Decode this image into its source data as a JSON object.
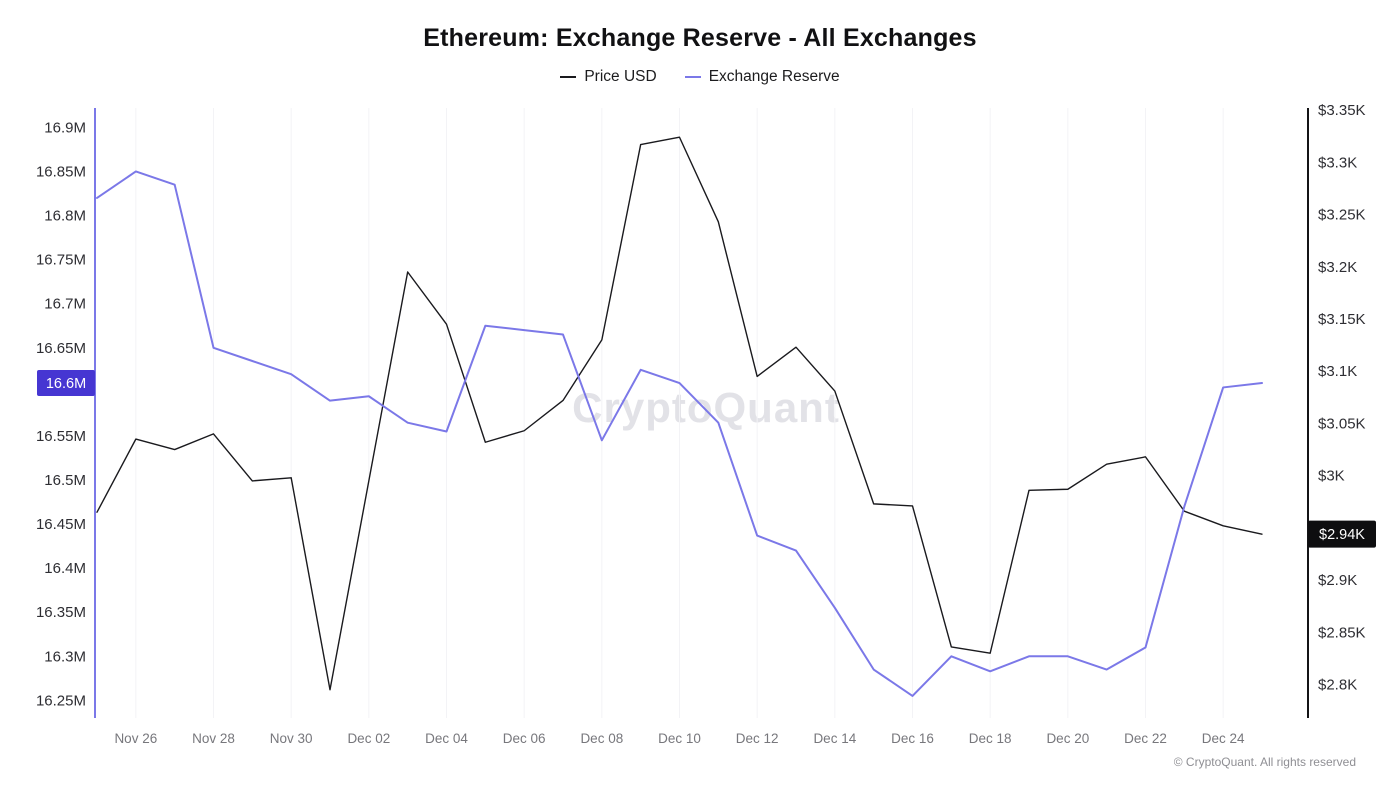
{
  "header": {
    "title": "Ethereum: Exchange Reserve - All Exchanges"
  },
  "legend": {
    "items": [
      {
        "label": "Price USD",
        "color": "#1a1a1e"
      },
      {
        "label": "Exchange Reserve",
        "color": "#7b78e8"
      }
    ]
  },
  "watermark": "CryptoQuant",
  "footer": {
    "copyright": "© CryptoQuant. All rights reserved"
  },
  "badges": {
    "left": {
      "label": "16.6M",
      "color": "#4636d2",
      "value": 16.61
    },
    "right": {
      "label": "$2.94K",
      "color": "#0e0e10",
      "value": 2944
    }
  },
  "chart_data": {
    "type": "line",
    "title": "Ethereum: Exchange Reserve - All Exchanges",
    "x": [
      "Nov 25",
      "Nov 26",
      "Nov 27",
      "Nov 28",
      "Nov 29",
      "Nov 30",
      "Dec 01",
      "Dec 02",
      "Dec 03",
      "Dec 04",
      "Dec 05",
      "Dec 06",
      "Dec 07",
      "Dec 08",
      "Dec 09",
      "Dec 10",
      "Dec 11",
      "Dec 12",
      "Dec 13",
      "Dec 14",
      "Dec 15",
      "Dec 16",
      "Dec 17",
      "Dec 18",
      "Dec 19",
      "Dec 20",
      "Dec 21",
      "Dec 22",
      "Dec 23",
      "Dec 24",
      "Dec 25"
    ],
    "x_tick_labels": [
      "Nov 26",
      "Nov 28",
      "Nov 30",
      "Dec 02",
      "Dec 04",
      "Dec 06",
      "Dec 08",
      "Dec 10",
      "Dec 12",
      "Dec 14",
      "Dec 16",
      "Dec 18",
      "Dec 20",
      "Dec 22",
      "Dec 24"
    ],
    "series": [
      {
        "name": "Price USD",
        "axis": "right",
        "color": "#1a1a1e",
        "unit": "USD",
        "values": [
          2965,
          3035,
          3025,
          3040,
          2995,
          2998,
          2795,
          2995,
          3195,
          3145,
          3032,
          3043,
          3072,
          3130,
          3317,
          3324,
          3243,
          3095,
          3123,
          3081,
          2973,
          2971,
          2836,
          2830,
          2986,
          2987,
          3011,
          3018,
          2966,
          2952,
          2944
        ]
      },
      {
        "name": "Exchange Reserve",
        "axis": "left",
        "color": "#7b78e8",
        "unit": "M ETH",
        "values": [
          16.82,
          16.85,
          16.835,
          16.65,
          16.635,
          16.62,
          16.59,
          16.595,
          16.565,
          16.555,
          16.675,
          16.67,
          16.665,
          16.545,
          16.625,
          16.61,
          16.565,
          16.437,
          16.42,
          16.355,
          16.285,
          16.255,
          16.3,
          16.283,
          16.3,
          16.3,
          16.285,
          16.31,
          16.47,
          16.605,
          16.61
        ]
      }
    ],
    "left_axis": {
      "name": "Exchange Reserve",
      "min": 16.23,
      "max": 16.922,
      "ticks": [
        {
          "value": 16.9,
          "label": "16.9M"
        },
        {
          "value": 16.85,
          "label": "16.85M"
        },
        {
          "value": 16.8,
          "label": "16.8M"
        },
        {
          "value": 16.75,
          "label": "16.75M"
        },
        {
          "value": 16.7,
          "label": "16.7M"
        },
        {
          "value": 16.65,
          "label": "16.65M"
        },
        {
          "value": 16.55,
          "label": "16.55M"
        },
        {
          "value": 16.5,
          "label": "16.5M"
        },
        {
          "value": 16.45,
          "label": "16.45M"
        },
        {
          "value": 16.4,
          "label": "16.4M"
        },
        {
          "value": 16.35,
          "label": "16.35M"
        },
        {
          "value": 16.3,
          "label": "16.3M"
        },
        {
          "value": 16.25,
          "label": "16.25M"
        }
      ]
    },
    "right_axis": {
      "name": "Price USD",
      "min": 2768,
      "max": 3352,
      "ticks": [
        {
          "value": 3350,
          "label": "$3.35K"
        },
        {
          "value": 3300,
          "label": "$3.3K"
        },
        {
          "value": 3250,
          "label": "$3.25K"
        },
        {
          "value": 3200,
          "label": "$3.2K"
        },
        {
          "value": 3150,
          "label": "$3.15K"
        },
        {
          "value": 3100,
          "label": "$3.1K"
        },
        {
          "value": 3050,
          "label": "$3.05K"
        },
        {
          "value": 3000,
          "label": "$3K"
        },
        {
          "value": 2900,
          "label": "$2.9K"
        },
        {
          "value": 2850,
          "label": "$2.85K"
        },
        {
          "value": 2800,
          "label": "$2.8K"
        }
      ]
    },
    "grid": "faint-vertical",
    "legend_position": "top-center"
  }
}
